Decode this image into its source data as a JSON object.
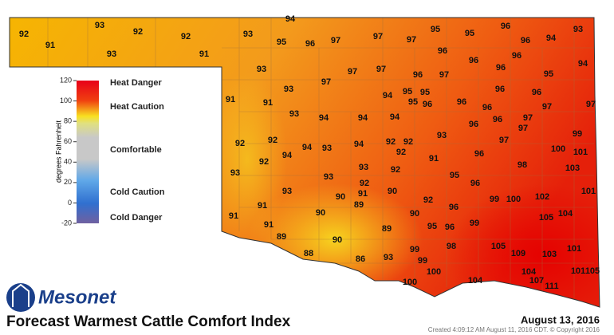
{
  "logo": "Mesonet",
  "title": "Forecast Warmest Cattle Comfort Index",
  "date": "August 13, 2016",
  "credit": "Created 4:09:12 AM August 11, 2016 CDT. © Copyright 2016",
  "legend": {
    "axis_label": "degrees Fahrenheit",
    "range": [
      -20,
      120
    ],
    "ticks": [
      120,
      100,
      80,
      60,
      40,
      20,
      0,
      -20
    ],
    "labels": [
      "Heat Danger",
      "Heat Caution",
      "Comfortable",
      "Cold Caution",
      "Cold Danger"
    ]
  },
  "stations": {
    "values": [
      92,
      91,
      93,
      92,
      93,
      92,
      91,
      94,
      93,
      95,
      96,
      97,
      97,
      97,
      95,
      95,
      96,
      96,
      94,
      93,
      96,
      96,
      96,
      94,
      93,
      97,
      97,
      96,
      97,
      96,
      95,
      97,
      93,
      91,
      91,
      95,
      95,
      94,
      95,
      96,
      96,
      96,
      96,
      97,
      97,
      93,
      94,
      94,
      96,
      96,
      97,
      97,
      94,
      96,
      99,
      92,
      92,
      94,
      93,
      94,
      92,
      92,
      92,
      93,
      97,
      100,
      101,
      94,
      92,
      96,
      91,
      98,
      93,
      93,
      93,
      92,
      95,
      103,
      92,
      91,
      90,
      90,
      93,
      96,
      101,
      99,
      100,
      102,
      91,
      89,
      92,
      96,
      105,
      104,
      91,
      90,
      90,
      91,
      95,
      96,
      99,
      89,
      90,
      89,
      88,
      86,
      93,
      99,
      98,
      105,
      109,
      103,
      101,
      99,
      100,
      104,
      101,
      105,
      100,
      104,
      107,
      111
    ]
  }
}
